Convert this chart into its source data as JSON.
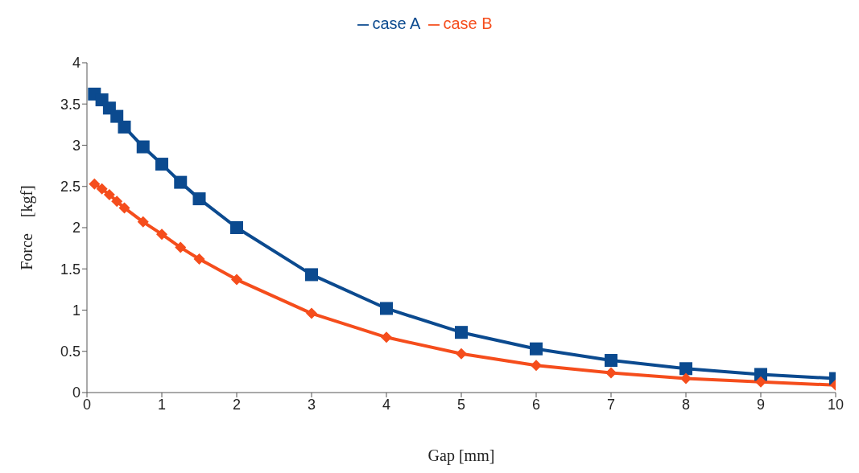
{
  "chart_data": {
    "type": "line",
    "xlabel": "Gap [mm]",
    "ylabel": "Force　[kgf]",
    "xlim": [
      0,
      10
    ],
    "xticks": [
      0,
      1,
      2,
      3,
      4,
      5,
      6,
      7,
      8,
      9,
      10
    ],
    "ylim": [
      0,
      4
    ],
    "yticks": [
      0,
      0.5,
      1,
      1.5,
      2,
      2.5,
      3,
      3.5,
      4
    ],
    "legend": "top",
    "grid": false,
    "line_style": "solid",
    "x": [
      0.1,
      0.2,
      0.3,
      0.4,
      0.5,
      0.75,
      1,
      1.25,
      1.5,
      2,
      3,
      4,
      5,
      6,
      7,
      8,
      9,
      10
    ],
    "series": [
      {
        "name": "case A",
        "color": "#0b4a8f",
        "marker": "square",
        "values": [
          3.62,
          3.55,
          3.45,
          3.35,
          3.22,
          2.98,
          2.77,
          2.55,
          2.35,
          2.0,
          1.43,
          1.02,
          0.73,
          0.53,
          0.39,
          0.29,
          0.22,
          0.17
        ]
      },
      {
        "name": "case B",
        "color": "#f54d1c",
        "marker": "diamond",
        "values": [
          2.53,
          2.47,
          2.4,
          2.32,
          2.24,
          2.07,
          1.92,
          1.76,
          1.62,
          1.37,
          0.96,
          0.67,
          0.47,
          0.33,
          0.24,
          0.17,
          0.13,
          0.09
        ]
      }
    ]
  }
}
